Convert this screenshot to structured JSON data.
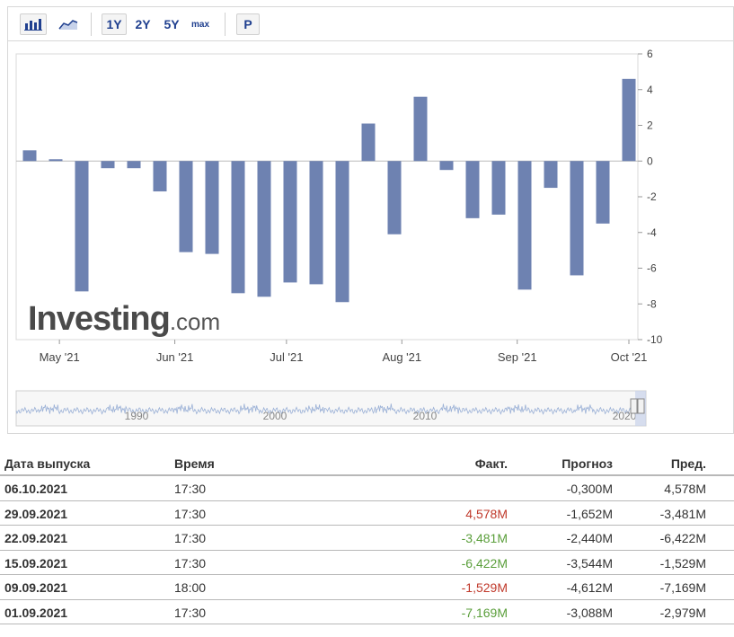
{
  "toolbar": {
    "buttons": [
      "1Y",
      "2Y",
      "5Y",
      "max",
      "P"
    ],
    "icons": [
      "bar-chart-icon",
      "area-chart-icon"
    ]
  },
  "chart_data": {
    "type": "bar",
    "x": [
      "2021-04-23",
      "2021-04-30",
      "2021-05-07",
      "2021-05-14",
      "2021-05-21",
      "2021-05-28",
      "2021-06-04",
      "2021-06-11",
      "2021-06-18",
      "2021-06-25",
      "2021-07-02",
      "2021-07-09",
      "2021-07-16",
      "2021-07-23",
      "2021-07-30",
      "2021-08-06",
      "2021-08-13",
      "2021-08-20",
      "2021-08-27",
      "2021-09-03",
      "2021-09-10",
      "2021-09-17",
      "2021-09-24",
      "2021-10-01"
    ],
    "values": [
      0.6,
      0.1,
      -7.3,
      -0.4,
      -0.4,
      -1.7,
      -5.1,
      -5.2,
      -7.4,
      -7.6,
      -6.8,
      -6.9,
      -7.9,
      2.1,
      -4.1,
      3.6,
      -0.5,
      -3.2,
      -3.0,
      -7.2,
      -1.5,
      -6.4,
      -3.5,
      4.6
    ],
    "ylim": [
      -10,
      6
    ],
    "yticks": [
      6,
      4,
      2,
      0,
      -2,
      -4,
      -6,
      -8,
      -10
    ],
    "xticks": [
      "May '21",
      "Jun '21",
      "Jul '21",
      "Aug '21",
      "Sep '21",
      "Oct '21"
    ],
    "navigator_labels": [
      "1990",
      "2000",
      "2010",
      "2020"
    ],
    "bar_color": "#6e82b1",
    "grid": false
  },
  "logo": {
    "main": "Investing",
    "suffix": ".com"
  },
  "table": {
    "headers": [
      "Дата выпуска",
      "Время",
      "Факт.",
      "Прогноз",
      "Пред."
    ],
    "rows": [
      {
        "date": "06.10.2021",
        "time": "17:30",
        "actual": "",
        "actual_color": "",
        "forecast": "-0,300M",
        "previous": "4,578M"
      },
      {
        "date": "29.09.2021",
        "time": "17:30",
        "actual": "4,578M",
        "actual_color": "#c0392b",
        "forecast": "-1,652M",
        "previous": "-3,481M"
      },
      {
        "date": "22.09.2021",
        "time": "17:30",
        "actual": "-3,481M",
        "actual_color": "#5a9e3a",
        "forecast": "-2,440M",
        "previous": "-6,422M"
      },
      {
        "date": "15.09.2021",
        "time": "17:30",
        "actual": "-6,422M",
        "actual_color": "#5a9e3a",
        "forecast": "-3,544M",
        "previous": "-1,529M"
      },
      {
        "date": "09.09.2021",
        "time": "18:00",
        "actual": "-1,529M",
        "actual_color": "#c0392b",
        "forecast": "-4,612M",
        "previous": "-7,169M"
      },
      {
        "date": "01.09.2021",
        "time": "17:30",
        "actual": "-7,169M",
        "actual_color": "#5a9e3a",
        "forecast": "-3,088M",
        "previous": "-2,979M"
      }
    ]
  }
}
